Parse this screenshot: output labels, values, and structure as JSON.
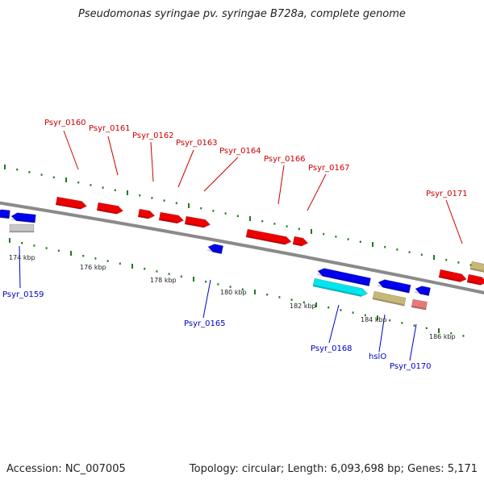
{
  "title": "Pseudomonas syringae pv. syringae B728a, complete genome",
  "footer": {
    "accession": "Accession: NC_007005",
    "summary": "Topology: circular; Length: 6,093,698 bp; Genes: 5,171"
  },
  "colors": {
    "background": "#ffffff",
    "backbone": "#8a8a8a",
    "tick": "#1f7a1f",
    "forward_label": "#cc0000",
    "reverse_label": "#0000cc",
    "gene_red": "#ee0000",
    "gene_blue": "#0000ee",
    "gene_cyan": "#00e5ee",
    "gene_tan": "#c8b878",
    "gene_pink": "#e87878",
    "gene_gray": "#c8c8c8"
  },
  "kbp_labels": [
    "174 kbp",
    "176 kbp",
    "178 kbp",
    "180 kbp",
    "182 kbp",
    "184 kbp",
    "186 kbp"
  ],
  "forward_labels": [
    "Psyr_0160",
    "Psyr_0161",
    "Psyr_0162",
    "Psyr_0163",
    "Psyr_0164",
    "Psyr_0166",
    "Psyr_0167",
    "Psyr_0171"
  ],
  "reverse_labels": [
    "Psyr_0159",
    "Psyr_0165",
    "Psyr_0168",
    "hslO",
    "Psyr_0170"
  ]
}
